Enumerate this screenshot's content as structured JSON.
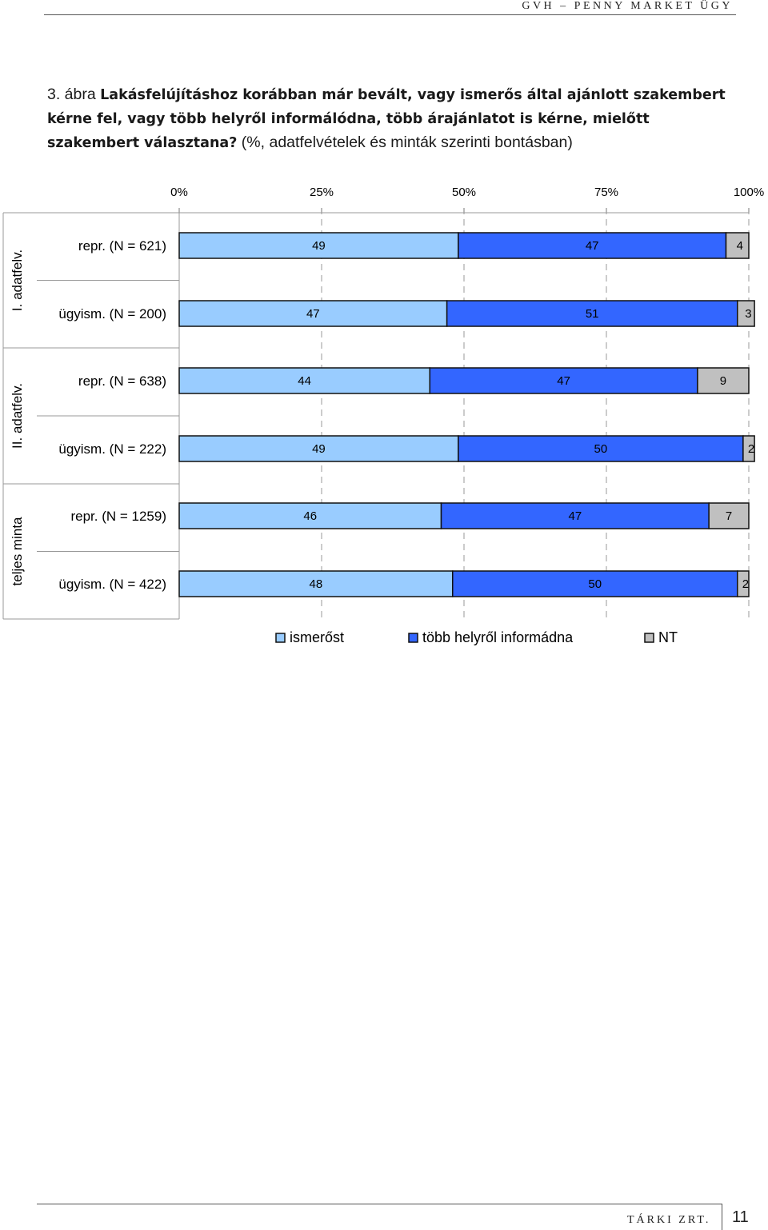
{
  "header": {
    "text": "GVH – PENNY MARKET ÜGY"
  },
  "caption": {
    "prefix": "3. ábra ",
    "title": "Lakásfelújításhoz korábban már bevált, vagy ismerős által ajánlott szakembert kérne fel, vagy több helyről informálódna, több árajánlatot is kérne, mielőtt szakembert választana?",
    "suffix": " (%, adatfelvételek és minták szerinti bontásban)"
  },
  "chart_data": {
    "type": "bar",
    "orientation": "horizontal",
    "stacked": true,
    "stacked_to": 100,
    "x_ticks": [
      "0%",
      "25%",
      "50%",
      "75%",
      "100%"
    ],
    "xlim": [
      0,
      100
    ],
    "grid": true,
    "legend_position": "bottom",
    "groups": [
      {
        "label": "I. adatfelv.",
        "rows": [
          "repr. (N = 621)",
          "ügyism. (N = 200)"
        ]
      },
      {
        "label": "II. adatfelv.",
        "rows": [
          "repr. (N = 638)",
          "ügyism. (N = 222)"
        ]
      },
      {
        "label": "teljes minta",
        "rows": [
          "repr. (N = 1259)",
          "ügyism. (N = 422)"
        ]
      }
    ],
    "categories": [
      "repr. (N = 621)",
      "ügyism. (N = 200)",
      "repr. (N = 638)",
      "ügyism. (N = 222)",
      "repr. (N = 1259)",
      "ügyism. (N = 422)"
    ],
    "series": [
      {
        "name": "ismerőst",
        "color": "#99ccff",
        "values": [
          49,
          47,
          44,
          49,
          46,
          48
        ]
      },
      {
        "name": "több helyről informádna",
        "color": "#3366ff",
        "values": [
          47,
          51,
          47,
          50,
          47,
          50
        ]
      },
      {
        "name": "NT",
        "color": "#c0c0c0",
        "values": [
          4,
          3,
          9,
          2,
          7,
          2
        ]
      }
    ]
  },
  "footer": {
    "company": "TÁRKI ZRT.",
    "page": "11"
  }
}
